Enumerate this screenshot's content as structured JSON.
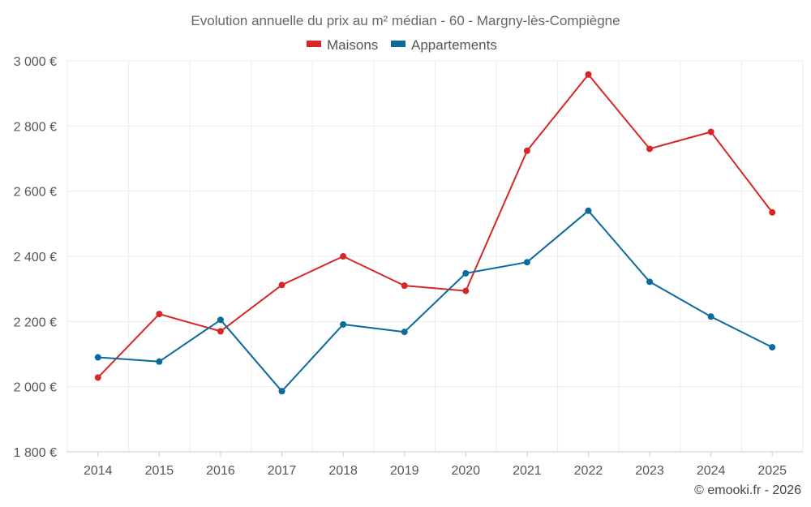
{
  "chart_data": {
    "type": "line",
    "title": "Evolution annuelle du prix au m² médian - 60 - Margny-lès-Compiègne",
    "categories": [
      "2014",
      "2015",
      "2016",
      "2017",
      "2018",
      "2019",
      "2020",
      "2021",
      "2022",
      "2023",
      "2024",
      "2025"
    ],
    "series": [
      {
        "name": "Maisons",
        "color": "#d62728",
        "values": [
          2028,
          2223,
          2170,
          2312,
          2400,
          2310,
          2294,
          2724,
          2958,
          2730,
          2782,
          2535
        ]
      },
      {
        "name": "Appartements",
        "color": "#0b6a9e",
        "values": [
          2090,
          2077,
          2205,
          1986,
          2191,
          2168,
          2348,
          2382,
          2540,
          2322,
          2215,
          2121
        ]
      }
    ],
    "ylim": [
      1800,
      3000
    ],
    "yticks": [
      1800,
      2000,
      2200,
      2400,
      2600,
      2800,
      3000
    ],
    "ytick_labels": [
      "1 800 €",
      "2 000 €",
      "2 200 €",
      "2 400 €",
      "2 600 €",
      "2 800 €",
      "3 000 €"
    ],
    "xlabel": "",
    "ylabel": "",
    "grid": true,
    "legend_position": "top-center"
  },
  "credit": "© emooki.fr - 2026"
}
